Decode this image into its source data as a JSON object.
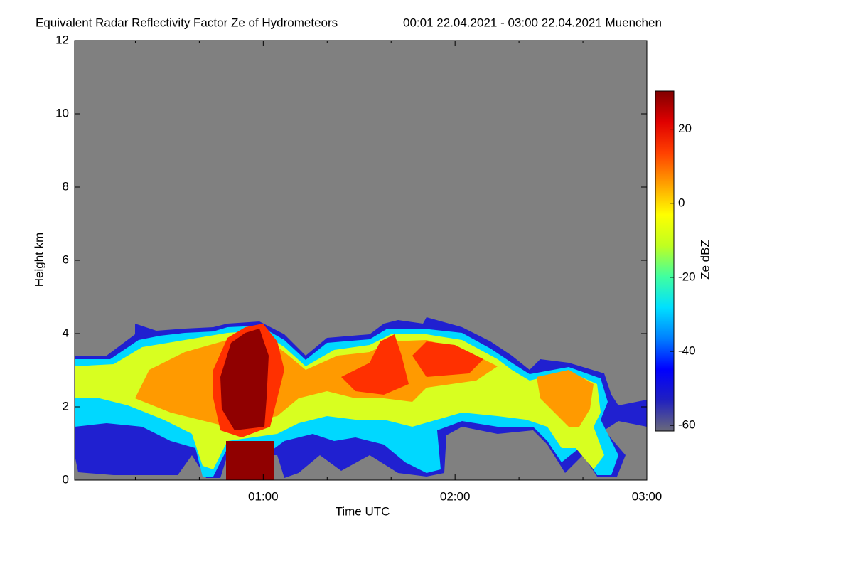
{
  "chart_data": {
    "type": "heatmap",
    "title": "Equivalent Radar Reflectivity Factor Ze of Hydrometeors",
    "subtitle": "00:01 22.04.2021 - 03:00 22.04.2021 Muenchen",
    "x_label": "Time UTC",
    "y_label": "Height km",
    "colorbar_label": "Ze dBZ",
    "xlim": [
      1,
      180
    ],
    "xticks": [
      {
        "value": 60,
        "label": "01:00"
      },
      {
        "value": 120,
        "label": "02:00"
      },
      {
        "value": 180,
        "label": "03:00"
      }
    ],
    "xminor_ticks": [
      20,
      40,
      80,
      100,
      140,
      160
    ],
    "ylim": [
      0,
      12
    ],
    "yticks": [
      0,
      2,
      4,
      6,
      8,
      10,
      12
    ],
    "zlim": [
      -61.5,
      30.3
    ],
    "zticks": [
      -60,
      -40,
      -20,
      0,
      20
    ],
    "background_color": "#808080",
    "colormap": [
      "#6a6a7a",
      "#2020c0",
      "#0000ff",
      "#0080ff",
      "#00e0ff",
      "#40ffa0",
      "#c0ff20",
      "#ffff00",
      "#ffa000",
      "#ff4000",
      "#e00000",
      "#800000"
    ]
  }
}
